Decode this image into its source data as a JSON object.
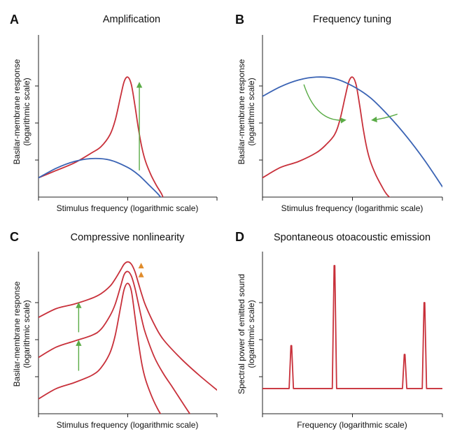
{
  "colors": {
    "red": "#c8303a",
    "blue": "#3a63b4",
    "green": "#5aab46",
    "orange": "#e08c2c",
    "axis": "#222222"
  },
  "chart_data": [
    {
      "id": "A",
      "type": "line",
      "letter": "A",
      "title": "Amplification",
      "xlabel": "Stimulus frequency (logarithmic scale)",
      "ylabel": [
        "Basilar-membrane response",
        "(logarithmic scale)"
      ],
      "xlim": [
        0,
        10
      ],
      "ylim": [
        0,
        10
      ],
      "x_ticks": [
        0,
        5,
        10
      ],
      "y_ticks": [
        2.5,
        5,
        7.5
      ],
      "series": [
        {
          "color": "red",
          "x": [
            0,
            1,
            2,
            3,
            3.5,
            4,
            4.3,
            4.6,
            4.8,
            5.0,
            5.2,
            5.4,
            5.6,
            5.8,
            6.0,
            6.3,
            6.6,
            6.9,
            7.1
          ],
          "y": [
            1.3,
            1.8,
            2.3,
            3.0,
            3.4,
            4.2,
            5.2,
            6.8,
            7.8,
            8.1,
            7.6,
            6.2,
            4.6,
            3.3,
            2.4,
            1.5,
            0.8,
            0.2,
            -0.4
          ]
        },
        {
          "color": "blue",
          "x": [
            0,
            1,
            2,
            3,
            4,
            5,
            5.6,
            6.2,
            6.7,
            7.1
          ],
          "y": [
            1.3,
            1.95,
            2.4,
            2.6,
            2.5,
            2.0,
            1.5,
            0.8,
            0.2,
            -0.4
          ]
        }
      ],
      "arrows": [
        {
          "color": "green",
          "x": 5.65,
          "from": 1.8,
          "to": 7.7
        }
      ]
    },
    {
      "id": "B",
      "type": "line",
      "letter": "B",
      "title": "Frequency tuning",
      "xlabel": "Stimulus frequency (logarithmic scale)",
      "ylabel": [
        "Basilar-membrane response",
        "(logarithmic scale)"
      ],
      "xlim": [
        0,
        10
      ],
      "ylim": [
        0,
        10
      ],
      "x_ticks": [
        0,
        5,
        10
      ],
      "y_ticks": [
        2.5,
        5,
        7.5
      ],
      "series": [
        {
          "color": "red",
          "x": [
            0,
            1,
            2,
            3,
            3.5,
            4,
            4.3,
            4.6,
            4.8,
            5.0,
            5.2,
            5.4,
            5.6,
            5.8,
            6.0,
            6.3,
            6.6,
            6.9,
            7.4
          ],
          "y": [
            1.3,
            2.0,
            2.4,
            3.0,
            3.5,
            4.2,
            5.2,
            6.8,
            7.8,
            8.1,
            7.6,
            6.2,
            4.6,
            3.3,
            2.4,
            1.5,
            0.8,
            0.2,
            -0.4
          ]
        },
        {
          "color": "blue",
          "x": [
            0,
            1,
            2,
            3,
            4,
            5,
            6,
            7,
            8,
            9,
            10
          ],
          "y": [
            6.8,
            7.45,
            7.9,
            8.1,
            8.0,
            7.5,
            6.7,
            5.5,
            4.1,
            2.5,
            0.7
          ]
        }
      ],
      "curved_arrows": [
        {
          "color": "green",
          "from": [
            2.3,
            7.6
          ],
          "ctrl": [
            3.0,
            5.0
          ],
          "to": [
            4.6,
            5.2
          ]
        },
        {
          "color": "green",
          "from": [
            7.5,
            5.6
          ],
          "ctrl": [
            6.8,
            5.3
          ],
          "to": [
            6.1,
            5.2
          ]
        }
      ]
    },
    {
      "id": "C",
      "type": "line",
      "letter": "C",
      "title": "Compressive nonlinearity",
      "xlabel": "Stimulus frequency (logarithmic scale)",
      "ylabel": [
        "Basilar-membrane response",
        "(logarithmic scale)"
      ],
      "xlim": [
        0,
        10
      ],
      "ylim": [
        0,
        10
      ],
      "x_ticks": [
        0,
        5,
        10
      ],
      "y_ticks": [
        2.5,
        5,
        7.5
      ],
      "series": [
        {
          "color": "red",
          "x": [
            0,
            1,
            2,
            3,
            3.5,
            4,
            4.3,
            4.6,
            4.8,
            5.0,
            5.2,
            5.4,
            5.6,
            5.8,
            6.0,
            6.5,
            7,
            8,
            9,
            10
          ],
          "y": [
            6.5,
            7.1,
            7.4,
            7.8,
            8.1,
            8.6,
            9.1,
            9.7,
            10.1,
            10.25,
            10.1,
            9.6,
            8.8,
            8.0,
            7.3,
            6.0,
            5.0,
            3.7,
            2.6,
            1.6
          ]
        },
        {
          "color": "red",
          "x": [
            0,
            1,
            2,
            3,
            3.5,
            4,
            4.3,
            4.6,
            4.8,
            5.0,
            5.2,
            5.4,
            5.6,
            5.8,
            6.0,
            6.5,
            7,
            7.5,
            8.2,
            8.7
          ],
          "y": [
            3.8,
            4.5,
            4.9,
            5.3,
            5.7,
            6.6,
            7.4,
            8.6,
            9.4,
            9.6,
            9.3,
            8.5,
            7.4,
            6.3,
            5.4,
            3.8,
            2.7,
            1.8,
            0.5,
            -0.4
          ]
        },
        {
          "color": "red",
          "x": [
            0,
            1,
            2,
            3,
            3.5,
            4,
            4.3,
            4.6,
            4.8,
            5.0,
            5.2,
            5.4,
            5.6,
            5.8,
            6.0,
            6.3,
            6.6,
            6.9,
            7.3
          ],
          "y": [
            1.0,
            1.7,
            2.1,
            2.6,
            3.1,
            4.1,
            5.3,
            7.2,
            8.4,
            8.8,
            8.3,
            6.6,
            4.8,
            3.3,
            2.3,
            1.3,
            0.5,
            -0.1,
            -0.4
          ]
        }
      ],
      "arrows": [
        {
          "color": "green",
          "x": 2.25,
          "from": 5.5,
          "to": 7.45
        },
        {
          "color": "green",
          "x": 2.25,
          "from": 2.9,
          "to": 4.9
        }
      ],
      "markers": [
        {
          "color": "orange",
          "x": 5.75,
          "y": 10.0
        },
        {
          "color": "orange",
          "x": 5.75,
          "y": 9.4
        }
      ]
    },
    {
      "id": "D",
      "type": "line",
      "letter": "D",
      "title": "Spontaneous otoacoustic emission",
      "xlabel": "Frequency (logarithmic scale)",
      "ylabel": [
        "Spectral power of emitted sound",
        "(logarithmic scale)"
      ],
      "xlim": [
        0,
        10
      ],
      "ylim": [
        0,
        10
      ],
      "x_ticks": [
        0,
        5,
        10
      ],
      "y_ticks": [
        2.5,
        5,
        7.5
      ],
      "baseline": 1.7,
      "peaks": [
        {
          "x": 1.6,
          "height": 4.6
        },
        {
          "x": 4.0,
          "height": 10.0
        },
        {
          "x": 7.9,
          "height": 4.0
        },
        {
          "x": 9.0,
          "height": 7.5
        }
      ],
      "peak_color": "red"
    }
  ]
}
